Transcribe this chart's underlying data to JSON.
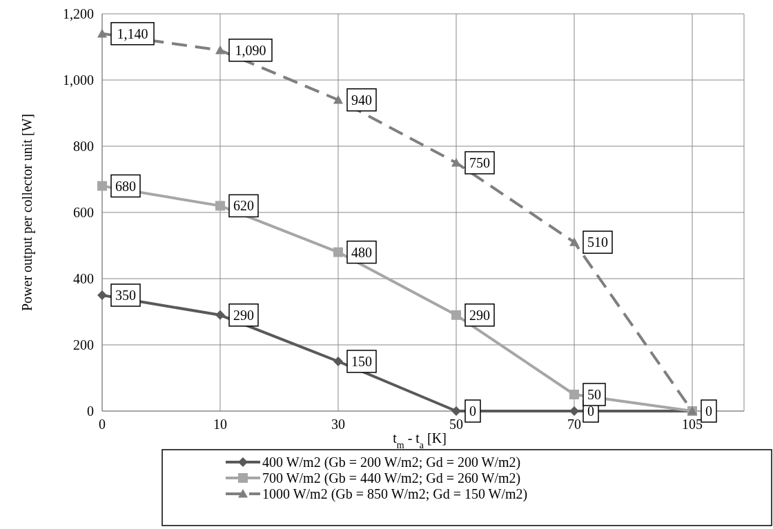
{
  "chart_data": {
    "type": "line",
    "xlabel": "t$_{m}$ - t$_{a}$ [K]",
    "ylabel": "Power output per collector unit [W]",
    "categories": [
      "0",
      "10",
      "30",
      "50",
      "70",
      "105"
    ],
    "ylim": [
      0,
      1200
    ],
    "yticks": [
      0,
      {
        "value": 200,
        "label": "200"
      },
      {
        "value": 400,
        "label": "400"
      },
      {
        "value": 600,
        "label": "600"
      },
      {
        "value": 800,
        "label": "800"
      },
      {
        "value": 1000,
        "label": "1,000"
      },
      {
        "value": 1200,
        "label": "1,200"
      }
    ],
    "grid": true,
    "legend": "bottom",
    "series": [
      {
        "name": "400 W/m2 (Gb = 200 W/m2; Gd = 200 W/m2)",
        "color": "#595959",
        "marker": "diamond",
        "line_style": "solid",
        "values": [
          350,
          290,
          150,
          0,
          0,
          0
        ],
        "value_labels": [
          "350",
          "290",
          "150",
          "0",
          "0",
          null
        ]
      },
      {
        "name": "700 W/m2 (Gb = 440 W/m2; Gd = 260 W/m2)",
        "color": "#a6a6a6",
        "marker": "square",
        "line_style": "solid",
        "values": [
          680,
          620,
          480,
          290,
          50,
          0
        ],
        "value_labels": [
          "680",
          "620",
          "480",
          "290",
          "50",
          null
        ]
      },
      {
        "name": "1000 W/m2 (Gb = 850 W/m2; Gd = 150 W/m2)",
        "color": "#7f7f7f",
        "marker": "triangle",
        "line_style": "dashed",
        "values": [
          1140,
          1090,
          940,
          750,
          510,
          0
        ],
        "value_labels": [
          "1,140",
          "1,090",
          "940",
          "750",
          "510",
          "0"
        ]
      }
    ]
  }
}
